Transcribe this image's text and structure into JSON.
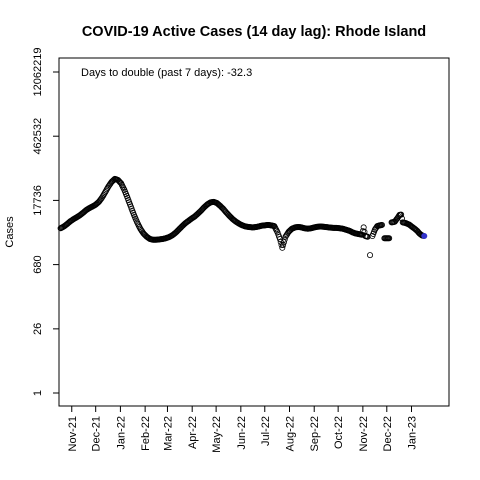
{
  "chart_data": {
    "type": "scatter",
    "title": "COVID-19 Active Cases (14 day lag): Rhode Island",
    "ylabel": "Cases",
    "xlabel": "",
    "y_scale": "log",
    "ylim": [
      1,
      12062219
    ],
    "y_ticks": [
      {
        "value": 1,
        "label": "1"
      },
      {
        "value": 26,
        "label": "26"
      },
      {
        "value": 680,
        "label": "680"
      },
      {
        "value": 17736,
        "label": "17736"
      },
      {
        "value": 462532,
        "label": "462532"
      },
      {
        "value": 12062219,
        "label": "12062219"
      }
    ],
    "xlim": [
      "2021-10-16",
      "2023-02-17"
    ],
    "x_ticks": [
      {
        "date": "2021-11-01",
        "label": "Nov-21"
      },
      {
        "date": "2021-12-01",
        "label": "Dec-21"
      },
      {
        "date": "2022-01-01",
        "label": "Jan-22"
      },
      {
        "date": "2022-02-01",
        "label": "Feb-22"
      },
      {
        "date": "2022-03-01",
        "label": "Mar-22"
      },
      {
        "date": "2022-04-01",
        "label": "Apr-22"
      },
      {
        "date": "2022-05-01",
        "label": "May-22"
      },
      {
        "date": "2022-06-01",
        "label": "Jun-22"
      },
      {
        "date": "2022-07-01",
        "label": "Jul-22"
      },
      {
        "date": "2022-08-01",
        "label": "Aug-22"
      },
      {
        "date": "2022-09-01",
        "label": "Sep-22"
      },
      {
        "date": "2022-10-01",
        "label": "Oct-22"
      },
      {
        "date": "2022-11-01",
        "label": "Nov-22"
      },
      {
        "date": "2022-12-01",
        "label": "Dec-22"
      },
      {
        "date": "2023-01-01",
        "label": "Jan-23"
      }
    ],
    "annotation": "Days to double (past 7 days): -32.3",
    "grid": false,
    "point_color": "#000000",
    "last_point_color": "#3333cc",
    "series": [
      {
        "points": [
          [
            "2021-10-18",
            4300
          ],
          [
            "2021-10-22",
            4700
          ],
          [
            "2021-10-26",
            5300
          ],
          [
            "2021-10-30",
            6100
          ],
          [
            "2021-11-03",
            6800
          ],
          [
            "2021-11-07",
            7500
          ],
          [
            "2021-11-11",
            8300
          ],
          [
            "2021-11-15",
            9400
          ],
          [
            "2021-11-19",
            10800
          ],
          [
            "2021-11-23",
            12000
          ],
          [
            "2021-11-27",
            13000
          ],
          [
            "2021-12-01",
            14300
          ],
          [
            "2021-12-05",
            16500
          ],
          [
            "2021-12-09",
            20500
          ],
          [
            "2021-12-13",
            27000
          ],
          [
            "2021-12-17",
            36000
          ],
          [
            "2021-12-21",
            45500
          ],
          [
            "2021-12-25",
            53000
          ],
          [
            "2021-12-29",
            50000
          ],
          [
            "2022-01-02",
            42000
          ],
          [
            "2022-01-06",
            30000
          ],
          [
            "2022-01-10",
            20000
          ],
          [
            "2022-01-14",
            13000
          ],
          [
            "2022-01-18",
            8500
          ],
          [
            "2022-01-22",
            5800
          ],
          [
            "2022-01-26",
            4200
          ],
          [
            "2022-01-30",
            3300
          ],
          [
            "2022-02-03",
            2800
          ],
          [
            "2022-02-07",
            2500
          ],
          [
            "2022-02-11",
            2400
          ],
          [
            "2022-02-15",
            2400
          ],
          [
            "2022-02-19",
            2450
          ],
          [
            "2022-02-23",
            2500
          ],
          [
            "2022-02-27",
            2600
          ],
          [
            "2022-03-03",
            2750
          ],
          [
            "2022-03-07",
            3000
          ],
          [
            "2022-03-11",
            3400
          ],
          [
            "2022-03-15",
            4000
          ],
          [
            "2022-03-19",
            4700
          ],
          [
            "2022-03-23",
            5500
          ],
          [
            "2022-03-27",
            6200
          ],
          [
            "2022-03-31",
            7000
          ],
          [
            "2022-04-04",
            7800
          ],
          [
            "2022-04-08",
            9000
          ],
          [
            "2022-04-12",
            10500
          ],
          [
            "2022-04-16",
            12500
          ],
          [
            "2022-04-20",
            14500
          ],
          [
            "2022-04-24",
            16000
          ],
          [
            "2022-04-28",
            16500
          ],
          [
            "2022-05-02",
            15500
          ],
          [
            "2022-05-06",
            13500
          ],
          [
            "2022-05-10",
            11500
          ],
          [
            "2022-05-14",
            9500
          ],
          [
            "2022-05-18",
            8000
          ],
          [
            "2022-05-22",
            6800
          ],
          [
            "2022-05-26",
            6000
          ],
          [
            "2022-05-30",
            5400
          ],
          [
            "2022-06-03",
            5000
          ],
          [
            "2022-06-07",
            4700
          ],
          [
            "2022-06-11",
            4600
          ],
          [
            "2022-06-15",
            4500
          ],
          [
            "2022-06-19",
            4550
          ],
          [
            "2022-06-23",
            4700
          ],
          [
            "2022-06-27",
            4900
          ],
          [
            "2022-07-01",
            5000
          ],
          [
            "2022-07-05",
            5100
          ],
          [
            "2022-07-09",
            5000
          ],
          [
            "2022-07-13",
            4800
          ],
          [
            "2022-07-17",
            3500
          ],
          [
            "2022-07-20",
            2500
          ],
          [
            "2022-07-23",
            1600
          ],
          [
            "2022-07-27",
            2800
          ],
          [
            "2022-07-31",
            3600
          ],
          [
            "2022-08-04",
            4200
          ],
          [
            "2022-08-08",
            4500
          ],
          [
            "2022-08-12",
            4600
          ],
          [
            "2022-08-16",
            4500
          ],
          [
            "2022-08-20",
            4300
          ],
          [
            "2022-08-24",
            4200
          ],
          [
            "2022-08-28",
            4300
          ],
          [
            "2022-09-01",
            4500
          ],
          [
            "2022-09-05",
            4650
          ],
          [
            "2022-09-09",
            4700
          ],
          [
            "2022-09-13",
            4650
          ],
          [
            "2022-09-17",
            4550
          ],
          [
            "2022-09-21",
            4450
          ],
          [
            "2022-09-25",
            4400
          ],
          [
            "2022-09-29",
            4400
          ],
          [
            "2022-10-03",
            4300
          ],
          [
            "2022-10-07",
            4200
          ],
          [
            "2022-10-11",
            4000
          ],
          [
            "2022-10-15",
            3800
          ],
          [
            "2022-10-19",
            3500
          ],
          [
            "2022-10-23",
            3300
          ],
          [
            "2022-10-27",
            3200
          ],
          [
            "2022-10-31",
            3100
          ],
          [
            "2022-11-02",
            4500
          ],
          [
            "2022-11-04",
            2900
          ],
          [
            "2022-11-07",
            2800
          ],
          [
            "2022-11-10",
            1100
          ],
          [
            "2022-11-13",
            2900
          ],
          [
            "2022-11-16",
            4000
          ],
          [
            "2022-11-19",
            4800
          ],
          [
            "2022-11-22",
            5000
          ],
          [
            "2022-11-25",
            5100
          ],
          [
            "2022-11-28",
            2600
          ],
          [
            "2022-12-01",
            2600
          ],
          [
            "2022-12-04",
            2600
          ],
          [
            "2022-12-07",
            5800
          ],
          [
            "2022-12-11",
            6000
          ],
          [
            "2022-12-15",
            7500
          ],
          [
            "2022-12-17",
            8500
          ],
          [
            "2022-12-19",
            8600
          ],
          [
            "2022-12-21",
            5800
          ],
          [
            "2022-12-25",
            5600
          ],
          [
            "2022-12-29",
            5200
          ],
          [
            "2023-01-02",
            4600
          ],
          [
            "2023-01-05",
            4200
          ],
          [
            "2023-01-08",
            3800
          ],
          [
            "2023-01-11",
            3300
          ],
          [
            "2023-01-14",
            3000
          ],
          [
            "2023-01-17",
            2900
          ]
        ]
      }
    ]
  }
}
